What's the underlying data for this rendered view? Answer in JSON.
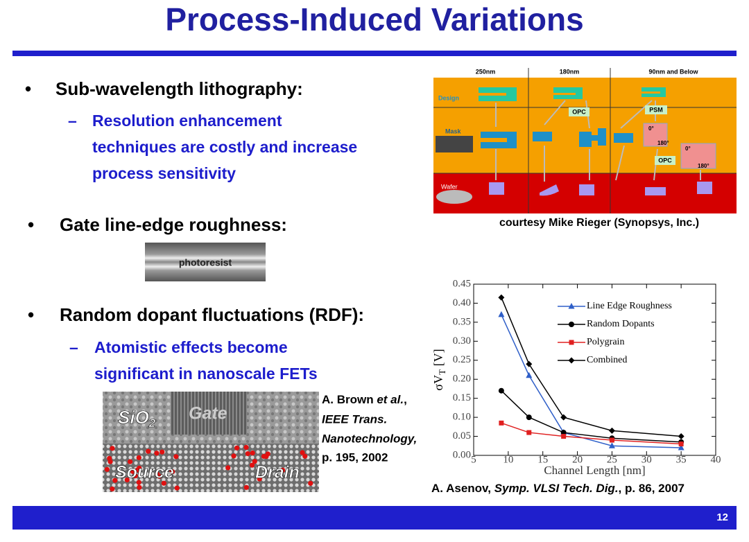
{
  "title": "Process-Induced Variations",
  "bullet_marker": "•",
  "sub_marker": "–",
  "bullets": [
    {
      "text": "Sub-wavelength lithography:",
      "sub": [
        "Resolution enhancement",
        "techniques are costly and increase",
        "process sensitivity"
      ]
    },
    {
      "text": "Gate line-edge roughness:"
    },
    {
      "text": "Random dopant fluctuations (RDF):",
      "sub": [
        "Atomistic effects become",
        "significant in nanoscale FETs"
      ]
    }
  ],
  "photoresist_label": "photoresist",
  "tem": {
    "oxide": [
      "SiO",
      "2"
    ],
    "gate": "Gate",
    "source": "Source",
    "drain": "Drain"
  },
  "brown_citation": [
    [
      "A. Brown ",
      "et al.",
      ","
    ],
    [
      "IEEE Trans."
    ],
    [
      "Nanotechnology,"
    ],
    [
      "p. 195, 2002"
    ]
  ],
  "litho_figure": {
    "columns": [
      "250nm",
      "180nm",
      "90nm and Below"
    ],
    "rows": [
      "Design",
      "Mask",
      "Wafer"
    ],
    "opc_180": "OPC",
    "psm": "PSM",
    "phase_0": "0°",
    "phase_180": "180°",
    "opc_90": "OPC",
    "phase_0b": "0°",
    "phase_180b": "180°"
  },
  "courtesy": "courtesy Mike Rieger (Synopsys, Inc.)",
  "asenov_citation": [
    "A. Asenov, ",
    "Symp. VLSI Tech. Dig.",
    ", p. 86, 2007"
  ],
  "page_number": "12",
  "chart_data": {
    "type": "line",
    "xlabel": "Channel Length [nm]",
    "ylabel": [
      "σV",
      "T",
      " [V]"
    ],
    "x": [
      9,
      13,
      18,
      25,
      35
    ],
    "series": [
      {
        "name": "Line Edge Roughness",
        "color": "#2f5fc8",
        "marker": "triangle",
        "values": [
          0.37,
          0.21,
          0.06,
          0.025,
          0.02
        ]
      },
      {
        "name": "Random Dopants",
        "color": "#000000",
        "marker": "circle",
        "values": [
          0.17,
          0.1,
          0.06,
          0.045,
          0.035
        ]
      },
      {
        "name": "Polygrain",
        "color": "#e02020",
        "marker": "square",
        "values": [
          0.085,
          0.06,
          0.05,
          0.04,
          0.03
        ]
      },
      {
        "name": "Combined",
        "color": "#000000",
        "marker": "diamond",
        "values": [
          0.415,
          0.24,
          0.1,
          0.065,
          0.05
        ]
      }
    ],
    "xlim": [
      5,
      40
    ],
    "xticks": [
      5,
      10,
      15,
      20,
      25,
      30,
      35,
      40
    ],
    "ylim": [
      0,
      0.45
    ],
    "yticks": [
      {
        "value": 0,
        "label": "0.00"
      },
      0.05,
      {
        "value": 0.1,
        "label": "0.10"
      },
      0.15,
      {
        "value": 0.2,
        "label": "0.20"
      },
      0.25,
      {
        "value": 0.3,
        "label": "0.30"
      },
      0.35,
      {
        "value": 0.4,
        "label": "0.40"
      },
      0.45
    ],
    "legend": "upper right"
  }
}
